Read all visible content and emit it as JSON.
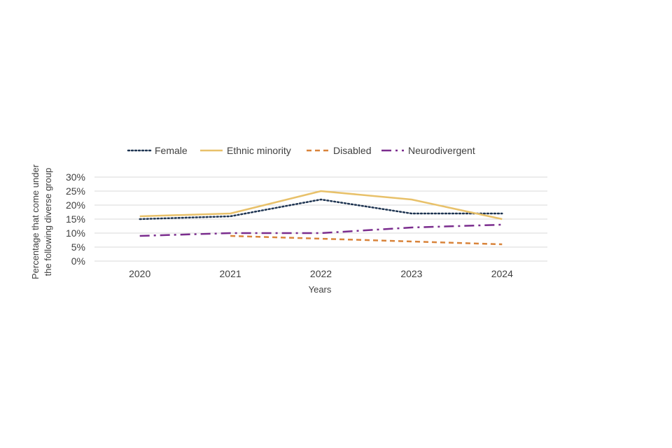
{
  "chart_data": {
    "type": "line",
    "title": "",
    "xlabel": "Years",
    "ylabel": [
      "Percentage that come under",
      "the following diverse group"
    ],
    "categories": [
      "2020",
      "2021",
      "2022",
      "2023",
      "2024"
    ],
    "ylim": [
      0,
      30
    ],
    "yticks": [
      "0%",
      "5%",
      "10%",
      "15%",
      "20%",
      "25%",
      "30%"
    ],
    "grid": true,
    "legend_position": "top",
    "series": [
      {
        "name": "Female",
        "color": "#1f3552",
        "style": "dotted",
        "values": [
          15,
          16,
          22,
          17,
          17
        ]
      },
      {
        "name": "Ethnic minority",
        "color": "#e8c16a",
        "style": "solid",
        "values": [
          16,
          17,
          25,
          22,
          15
        ]
      },
      {
        "name": "Disabled",
        "color": "#d9843b",
        "style": "dashed",
        "values": [
          null,
          9,
          8,
          7,
          6
        ]
      },
      {
        "name": "Neurodivergent",
        "color": "#7b2d8e",
        "style": "dashdot",
        "values": [
          9,
          10,
          10,
          12,
          13
        ]
      }
    ]
  }
}
